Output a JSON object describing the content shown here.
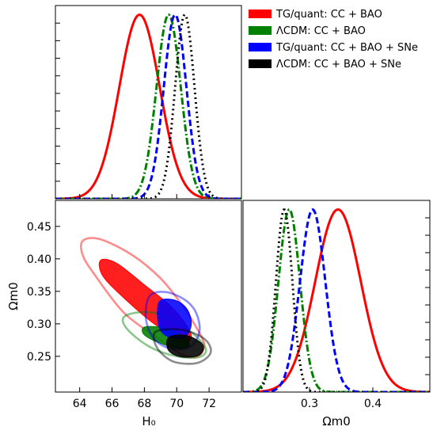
{
  "legend": {
    "placement": "top-right",
    "entries": [
      {
        "label": "TG/quant: CC + BAO",
        "color": "#ff0000",
        "style": "solid"
      },
      {
        "label": "ΛCDM: CC + BAO",
        "color": "#008000",
        "style": "dashdot"
      },
      {
        "label": "TG/quant: CC + BAO + SNe",
        "color": "#0000ff",
        "style": "dashed"
      },
      {
        "label": "ΛCDM: CC + BAO + SNe",
        "color": "#000000",
        "style": "dotted"
      }
    ]
  },
  "chart_data": [
    {
      "id": "h0-marginal",
      "type": "line",
      "xlabel": "",
      "ylabel": "",
      "xlim": [
        62.5,
        74
      ],
      "ylim": [
        0,
        1.05
      ],
      "series": [
        {
          "legend_index": 0,
          "color": "#ff0000",
          "style": "solid",
          "mean": 67.7,
          "sigma": 1.25
        },
        {
          "legend_index": 1,
          "color": "#008000",
          "style": "dashdot",
          "mean": 69.5,
          "sigma": 0.75
        },
        {
          "legend_index": 2,
          "color": "#0000ff",
          "style": "dashed",
          "mean": 69.9,
          "sigma": 0.7
        },
        {
          "legend_index": 3,
          "color": "#000000",
          "style": "dotted",
          "mean": 70.5,
          "sigma": 0.6
        }
      ]
    },
    {
      "id": "h0-omega-contours",
      "type": "scatter",
      "xlabel": "H₀",
      "ylabel": "Ωm0",
      "xlim": [
        62.5,
        74
      ],
      "ylim": [
        0.195,
        0.49
      ],
      "xticks": [
        "64",
        "66",
        "68",
        "70",
        "72"
      ],
      "xtick_values": [
        64,
        66,
        68,
        70,
        72
      ],
      "yticks": [
        "0.25",
        "0.30",
        "0.35",
        "0.40",
        "0.45"
      ],
      "ytick_values": [
        0.25,
        0.3,
        0.35,
        0.4,
        0.45
      ],
      "contours": [
        {
          "legend_index": 0,
          "color": "#ff0000",
          "level": "95%",
          "center": [
            67.6,
            0.345
          ],
          "points": [
            [
              64.2,
              0.428
            ],
            [
              65.3,
              0.43
            ],
            [
              67.3,
              0.405
            ],
            [
              69.0,
              0.37
            ],
            [
              70.3,
              0.33
            ],
            [
              71.2,
              0.295
            ],
            [
              71.7,
              0.268
            ],
            [
              71.3,
              0.25
            ],
            [
              70.3,
              0.253
            ],
            [
              68.6,
              0.282
            ],
            [
              66.7,
              0.318
            ],
            [
              65.0,
              0.373
            ],
            [
              64.2,
              0.405
            ]
          ]
        },
        {
          "legend_index": 0,
          "color": "#ff0000",
          "level": "68%",
          "center": [
            67.6,
            0.345
          ],
          "points": [
            [
              65.3,
              0.398
            ],
            [
              66.3,
              0.393
            ],
            [
              68.0,
              0.36
            ],
            [
              69.6,
              0.328
            ],
            [
              70.6,
              0.298
            ],
            [
              70.9,
              0.278
            ],
            [
              70.3,
              0.275
            ],
            [
              68.6,
              0.3
            ],
            [
              66.6,
              0.343
            ],
            [
              65.4,
              0.375
            ]
          ]
        },
        {
          "legend_index": 1,
          "color": "#008000",
          "level": "95%",
          "center": [
            69.3,
            0.275
          ],
          "points": [
            [
              66.8,
              0.312
            ],
            [
              68.3,
              0.318
            ],
            [
              69.8,
              0.305
            ],
            [
              71.0,
              0.285
            ],
            [
              71.8,
              0.262
            ],
            [
              71.4,
              0.249
            ],
            [
              70.0,
              0.25
            ],
            [
              68.3,
              0.265
            ],
            [
              66.9,
              0.293
            ]
          ]
        },
        {
          "legend_index": 1,
          "color": "#008000",
          "level": "68%",
          "center": [
            69.3,
            0.275
          ],
          "points": [
            [
              68.0,
              0.295
            ],
            [
              69.2,
              0.294
            ],
            [
              70.3,
              0.283
            ],
            [
              70.8,
              0.268
            ],
            [
              70.2,
              0.262
            ],
            [
              69.0,
              0.27
            ],
            [
              68.0,
              0.283
            ]
          ]
        },
        {
          "legend_index": 2,
          "color": "#0000ff",
          "level": "95%",
          "center": [
            69.8,
            0.3
          ],
          "points": [
            [
              68.3,
              0.342
            ],
            [
              69.3,
              0.349
            ],
            [
              70.5,
              0.337
            ],
            [
              71.2,
              0.317
            ],
            [
              71.4,
              0.288
            ],
            [
              70.8,
              0.264
            ],
            [
              69.6,
              0.262
            ],
            [
              68.6,
              0.277
            ],
            [
              68.1,
              0.307
            ]
          ]
        },
        {
          "legend_index": 2,
          "color": "#0000ff",
          "level": "68%",
          "center": [
            69.8,
            0.3
          ],
          "points": [
            [
              68.9,
              0.333
            ],
            [
              69.8,
              0.337
            ],
            [
              70.6,
              0.324
            ],
            [
              70.9,
              0.3
            ],
            [
              70.5,
              0.28
            ],
            [
              69.5,
              0.28
            ],
            [
              68.9,
              0.296
            ]
          ]
        },
        {
          "legend_index": 3,
          "color": "#000000",
          "level": "95%",
          "center": [
            70.6,
            0.262
          ],
          "points": [
            [
              68.8,
              0.289
            ],
            [
              70.3,
              0.291
            ],
            [
              71.7,
              0.277
            ],
            [
              72.1,
              0.256
            ],
            [
              71.3,
              0.24
            ],
            [
              69.9,
              0.241
            ],
            [
              69.0,
              0.256
            ],
            [
              68.6,
              0.275
            ]
          ]
        },
        {
          "legend_index": 3,
          "color": "#000000",
          "level": "68%",
          "center": [
            70.6,
            0.262
          ],
          "points": [
            [
              69.5,
              0.279
            ],
            [
              70.6,
              0.282
            ],
            [
              71.6,
              0.268
            ],
            [
              71.4,
              0.252
            ],
            [
              70.3,
              0.249
            ],
            [
              69.5,
              0.259
            ]
          ]
        }
      ]
    },
    {
      "id": "omega-marginal",
      "type": "line",
      "xlabel": "Ωm0",
      "ylabel": "",
      "xlim": [
        0.195,
        0.49
      ],
      "ylim": [
        0,
        1.05
      ],
      "xticks": [
        "0.3",
        "0.4"
      ],
      "xtick_values": [
        0.3,
        0.4
      ],
      "series": [
        {
          "legend_index": 0,
          "color": "#ff0000",
          "style": "solid",
          "mean": 0.345,
          "sigma": 0.036
        },
        {
          "legend_index": 1,
          "color": "#008000",
          "style": "dashdot",
          "mean": 0.268,
          "sigma": 0.017
        },
        {
          "legend_index": 2,
          "color": "#0000ff",
          "style": "dashed",
          "mean": 0.305,
          "sigma": 0.02
        },
        {
          "legend_index": 3,
          "color": "#000000",
          "style": "dotted",
          "mean": 0.26,
          "sigma": 0.013
        }
      ]
    }
  ]
}
